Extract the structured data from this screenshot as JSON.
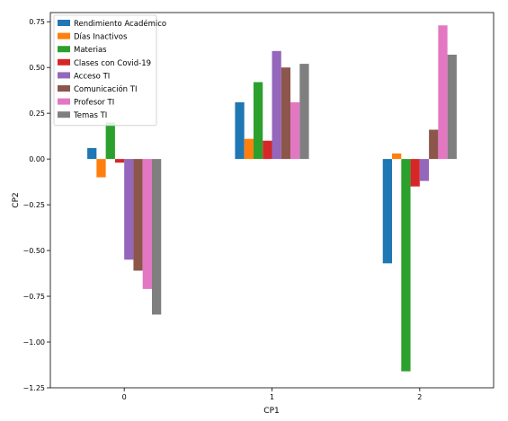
{
  "chart_data": {
    "type": "bar",
    "xlabel": "CP1",
    "ylabel": "CP2",
    "ylim": [
      -1.25,
      0.8
    ],
    "yticks": [
      "0.75",
      "0.50",
      "0.25",
      "0.00",
      "-0.25",
      "-0.50",
      "-0.75",
      "-1.00",
      "-1.25"
    ],
    "categories": [
      "0",
      "1",
      "2"
    ],
    "legend_position": "top-left",
    "grid": false,
    "series": [
      {
        "name": "Rendimiento Académico",
        "color": "#1f77b4",
        "values": [
          0.06,
          0.31,
          -0.57
        ]
      },
      {
        "name": "Días Inactivos",
        "color": "#ff7f0e",
        "values": [
          -0.1,
          0.11,
          0.03
        ]
      },
      {
        "name": "Materias",
        "color": "#2ca02c",
        "values": [
          0.2,
          0.42,
          -1.16
        ]
      },
      {
        "name": "Clases con Covid-19",
        "color": "#d62728",
        "values": [
          -0.02,
          0.1,
          -0.15
        ]
      },
      {
        "name": "Acceso TI",
        "color": "#9467bd",
        "values": [
          -0.55,
          0.59,
          -0.12
        ]
      },
      {
        "name": "Comunicación TI",
        "color": "#8c564b",
        "values": [
          -0.61,
          0.5,
          0.16
        ]
      },
      {
        "name": "Profesor  TI",
        "color": "#e377c2",
        "values": [
          -0.71,
          0.31,
          0.73
        ]
      },
      {
        "name": "Temas TI",
        "color": "#7f7f7f",
        "values": [
          -0.85,
          0.52,
          0.57
        ]
      }
    ]
  }
}
